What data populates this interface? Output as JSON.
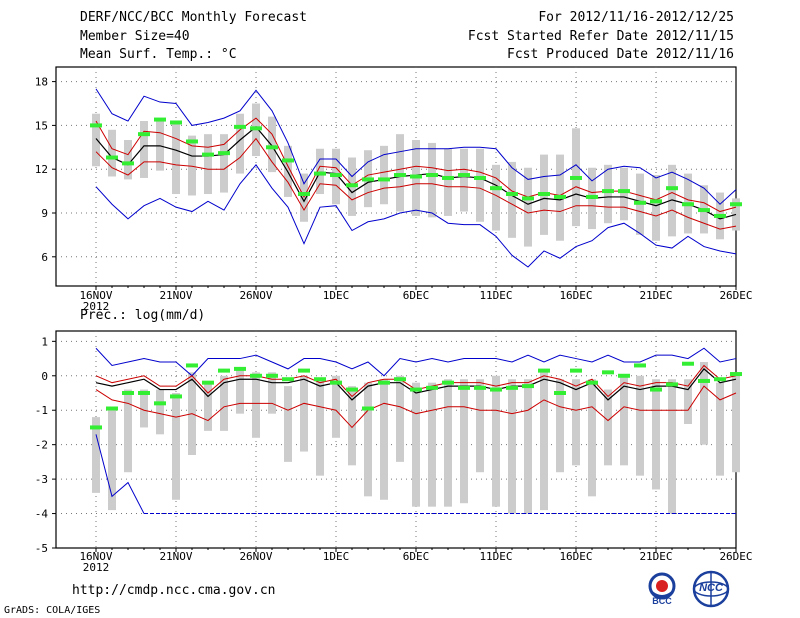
{
  "header": {
    "title": "DERF/NCC/BCC Monthly Forecast",
    "member_size": "Member Size=40",
    "variable": "Mean Surf. Temp.: °C",
    "for_period": "For 2012/11/16-2012/12/25",
    "fcst_started": "Fcst Started Refer Date 2012/11/15",
    "fcst_produced": "Fcst Produced Date 2012/11/16"
  },
  "precip_label": "Prec.: log(mm/d)",
  "footer": {
    "url": "http://cmdp.ncc.cma.gov.cn",
    "grads": "GrADS: COLA/IGES",
    "logo_bcc": "BCC",
    "logo_ncc": "NCC"
  },
  "colors": {
    "max_min": "#0000cc",
    "spread": "#cc0000",
    "mean": "#000000",
    "obs": "#33ee33",
    "box": "#cccccc",
    "grid": "#777777"
  },
  "chart_data": [
    {
      "type": "line",
      "name": "temperature",
      "title": "Mean Surf. Temp.: °C",
      "xlabel": "",
      "ylabel": "",
      "x_tick_labels": [
        "16NOV",
        "21NOV",
        "26NOV",
        "1DEC",
        "6DEC",
        "11DEC",
        "16DEC",
        "21DEC",
        "26DEC"
      ],
      "x_year_label": "2012",
      "y_ticks": [
        6,
        9,
        12,
        15,
        18
      ],
      "ylim": [
        4,
        19
      ],
      "days": 40,
      "series": [
        {
          "name": "max",
          "values": [
            17.5,
            15.8,
            15.3,
            17,
            16.6,
            16.5,
            15,
            15.2,
            15.5,
            16,
            17.4,
            16,
            13.8,
            11,
            12.7,
            12.7,
            11.5,
            12.5,
            13,
            13.2,
            13.4,
            13.4,
            13.4,
            13.5,
            13.5,
            13.4,
            12.1,
            11.3,
            11.5,
            11.6,
            12.3,
            11.2,
            12,
            12.2,
            12.1,
            11.4,
            11.8,
            11.3,
            10.7,
            9.6,
            10.6
          ]
        },
        {
          "name": "mean_plus",
          "values": [
            15.3,
            13.4,
            13,
            14.6,
            14.5,
            14.1,
            13.6,
            13.5,
            13.7,
            14.7,
            15.5,
            14.4,
            12.2,
            10.1,
            12.2,
            12.1,
            10.9,
            11.6,
            11.8,
            12,
            12.2,
            12.1,
            11.9,
            12,
            11.8,
            11.4,
            10.5,
            10.1,
            10.4,
            10.2,
            10.8,
            10.4,
            10.5,
            10.5,
            10.2,
            9.9,
            10.4,
            9.9,
            9.7,
            9.1,
            9.4
          ]
        },
        {
          "name": "mean",
          "values": [
            14.1,
            12.8,
            12.3,
            13.6,
            13.6,
            13.3,
            12.9,
            12.9,
            13,
            14,
            14.9,
            13.6,
            11.8,
            9.8,
            11.8,
            11.7,
            10.4,
            11.1,
            11.3,
            11.5,
            11.6,
            11.7,
            11.4,
            11.5,
            11.4,
            10.9,
            10.2,
            9.6,
            10,
            9.9,
            10.3,
            10,
            10.1,
            10.1,
            9.8,
            9.5,
            9.9,
            9.6,
            9.2,
            8.6,
            8.9
          ]
        },
        {
          "name": "mean_minus",
          "values": [
            13.2,
            12.1,
            11.6,
            12.5,
            12.5,
            12.3,
            12.2,
            12,
            12,
            12.8,
            14.1,
            12.5,
            11.1,
            9.2,
            11,
            10.9,
            9.9,
            10.4,
            10.7,
            10.8,
            11,
            11,
            10.8,
            10.8,
            10.7,
            10.2,
            9.6,
            9,
            9.2,
            9.1,
            9.5,
            9.5,
            9.4,
            9.4,
            9.1,
            8.8,
            9.2,
            8.7,
            8.3,
            7.9,
            8.1
          ]
        },
        {
          "name": "min",
          "values": [
            10.8,
            9.6,
            8.6,
            9.5,
            10,
            9.4,
            9.1,
            9.8,
            9.2,
            11,
            12.3,
            10.7,
            9.4,
            6.9,
            9.4,
            9.5,
            7.8,
            8.4,
            8.6,
            9,
            9.2,
            9,
            8.3,
            8.2,
            8.2,
            7.4,
            6.1,
            5.3,
            6.4,
            5.9,
            6.7,
            7.1,
            8,
            8.3,
            7.6,
            6.8,
            6.6,
            7.4,
            6.7,
            6.4,
            6.2
          ]
        },
        {
          "name": "obs",
          "values": [
            15,
            12.8,
            12.4,
            14.4,
            15.4,
            15.2,
            13.9,
            13,
            13.1,
            14.9,
            14.8,
            13.5,
            12.6,
            10.3,
            11.7,
            11.6,
            10.9,
            11.3,
            11.3,
            11.6,
            11.5,
            11.6,
            11.4,
            11.6,
            11.4,
            10.7,
            10.3,
            10,
            10.3,
            10.1,
            11.4,
            10.1,
            10.5,
            10.5,
            9.7,
            9.8,
            10.7,
            9.6,
            9.2,
            8.8,
            9.6
          ]
        },
        {
          "name": "box_top",
          "values": [
            15.8,
            14.7,
            14,
            15.3,
            15.3,
            15.1,
            14.3,
            14.4,
            14.4,
            15.8,
            16.5,
            15.6,
            13.6,
            11.7,
            13.4,
            13.4,
            12.8,
            13.3,
            13.6,
            14.4,
            14,
            13.8,
            13.4,
            13.4,
            13.4,
            12.3,
            12.5,
            12.1,
            13,
            13,
            14.8,
            12.1,
            12.3,
            12.1,
            11.7,
            11.6,
            12.3,
            11.7,
            10.9,
            10.4,
            10
          ]
        },
        {
          "name": "box_bottom",
          "values": [
            12.2,
            11.5,
            11.3,
            11.4,
            11.9,
            10.3,
            10.2,
            10.3,
            10.4,
            11.7,
            12.9,
            11.8,
            10.1,
            8.4,
            10.3,
            9.6,
            8.8,
            9.4,
            9.6,
            9.1,
            8.8,
            8.7,
            8.8,
            9.1,
            8.4,
            7.8,
            7.3,
            6.7,
            7.5,
            7.1,
            8.1,
            7.9,
            8.3,
            8.5,
            7.5,
            7.1,
            7.4,
            7.6,
            7.6,
            7.2,
            7.8
          ]
        }
      ]
    },
    {
      "type": "line",
      "name": "precipitation",
      "title": "Prec.: log(mm/d)",
      "xlabel": "",
      "ylabel": "",
      "x_tick_labels": [
        "16NOV",
        "21NOV",
        "26NOV",
        "1DEC",
        "6DEC",
        "11DEC",
        "16DEC",
        "21DEC",
        "26DEC"
      ],
      "x_year_label": "2012",
      "y_ticks": [
        -5,
        -4,
        -3,
        -2,
        -1,
        0,
        1
      ],
      "ylim": [
        -5,
        1.3
      ],
      "days": 40,
      "series": [
        {
          "name": "max",
          "values": [
            0.8,
            0.3,
            0.4,
            0.5,
            0.4,
            0.4,
            0,
            0.5,
            0.5,
            0.5,
            0.6,
            0.4,
            0.2,
            0.5,
            0.5,
            0.4,
            0.2,
            0.4,
            0,
            0.5,
            0.4,
            0.5,
            0.4,
            0.5,
            0.5,
            0.5,
            0.4,
            0.6,
            0.4,
            0.6,
            0.5,
            0.4,
            0.6,
            0.4,
            0.4,
            0.6,
            0.6,
            0.5,
            0.8,
            0.4,
            0.5
          ]
        },
        {
          "name": "mean_plus",
          "values": [
            0,
            -0.2,
            -0.1,
            0,
            -0.3,
            -0.3,
            0,
            -0.5,
            -0.1,
            0,
            0,
            -0.1,
            -0.1,
            0,
            -0.2,
            -0.1,
            -0.6,
            -0.2,
            -0.1,
            -0.1,
            -0.4,
            -0.3,
            -0.2,
            -0.2,
            -0.2,
            -0.3,
            -0.2,
            -0.2,
            0,
            -0.1,
            -0.3,
            -0.1,
            -0.6,
            -0.2,
            -0.3,
            -0.2,
            -0.2,
            -0.3,
            0.3,
            -0.1,
            0
          ]
        },
        {
          "name": "mean",
          "values": [
            -0.2,
            -0.3,
            -0.2,
            -0.1,
            -0.4,
            -0.4,
            -0.1,
            -0.6,
            -0.2,
            -0.1,
            -0.1,
            -0.2,
            -0.2,
            -0.1,
            -0.3,
            -0.2,
            -0.7,
            -0.3,
            -0.2,
            -0.2,
            -0.5,
            -0.4,
            -0.3,
            -0.3,
            -0.3,
            -0.4,
            -0.3,
            -0.3,
            -0.1,
            -0.2,
            -0.4,
            -0.2,
            -0.7,
            -0.3,
            -0.4,
            -0.3,
            -0.3,
            -0.4,
            0.2,
            -0.2,
            -0.1
          ]
        },
        {
          "name": "mean_minus",
          "values": [
            -0.4,
            -0.7,
            -0.8,
            -1,
            -1.1,
            -1.2,
            -1.1,
            -1.3,
            -0.9,
            -0.8,
            -0.8,
            -0.8,
            -1,
            -0.8,
            -0.9,
            -1,
            -1.5,
            -1,
            -0.8,
            -0.9,
            -1.1,
            -1,
            -0.9,
            -0.9,
            -1,
            -1,
            -1.1,
            -1,
            -0.7,
            -0.9,
            -1,
            -0.9,
            -1.3,
            -0.9,
            -1,
            -1,
            -1,
            -1,
            -0.3,
            -0.7,
            -0.5
          ]
        },
        {
          "name": "min",
          "values": [
            -1.7,
            -3.5,
            -3.1,
            -4,
            -4,
            -4,
            -4,
            -4,
            -4,
            -4,
            -4,
            -4,
            -4,
            -4,
            -4,
            -4,
            -4,
            -4,
            -4,
            -4,
            -4,
            -4,
            -4,
            -4,
            -4,
            -4,
            -4,
            -4,
            -4,
            -4,
            -4,
            -4,
            -4,
            -4,
            -4,
            -4,
            -4,
            -4,
            -4,
            -4,
            -4
          ]
        },
        {
          "name": "obs",
          "values": [
            -1.5,
            -0.95,
            -0.5,
            -0.5,
            -0.8,
            -0.6,
            0.3,
            -0.2,
            0.15,
            0.2,
            0,
            0,
            -0.1,
            0.15,
            -0.1,
            -0.2,
            -0.4,
            -0.95,
            -0.2,
            -0.1,
            -0.4,
            -0.35,
            -0.2,
            -0.35,
            -0.35,
            -0.4,
            -0.35,
            -0.3,
            0.15,
            -0.5,
            0.15,
            -0.2,
            0.1,
            0,
            0.3,
            -0.4,
            -0.25,
            0.35,
            -0.15,
            -0.1,
            0.05
          ]
        },
        {
          "name": "box_top",
          "values": [
            -1.2,
            -0.9,
            -0.4,
            -0.4,
            -0.4,
            -0.5,
            0.1,
            -0.2,
            0,
            0.2,
            0.1,
            0.1,
            -0.3,
            0,
            -0.1,
            0,
            -0.3,
            -0.2,
            -0.1,
            0,
            -0.2,
            -0.2,
            -0.1,
            -0.1,
            -0.1,
            0,
            -0.1,
            -0.1,
            0.1,
            -0.1,
            -0.1,
            -0.1,
            -0.4,
            0,
            0,
            -0.1,
            -0.1,
            -0.1,
            0.4,
            -0.2,
            0.1
          ]
        },
        {
          "name": "box_bottom",
          "values": [
            -3.4,
            -3.9,
            -2.8,
            -1.5,
            -1.7,
            -3.6,
            -2.3,
            -1.6,
            -1.6,
            -1.1,
            -1.8,
            -1.1,
            -2.5,
            -2.2,
            -2.9,
            -1.8,
            -2.6,
            -3.5,
            -3.6,
            -2.5,
            -3.8,
            -3.8,
            -3.8,
            -3.7,
            -2.8,
            -3.8,
            -4,
            -4,
            -3.9,
            -2.8,
            -2.6,
            -3.5,
            -2.6,
            -2.6,
            -2.9,
            -3.3,
            -4,
            -1.4,
            -2,
            -2.9,
            -2.8
          ]
        }
      ]
    }
  ]
}
